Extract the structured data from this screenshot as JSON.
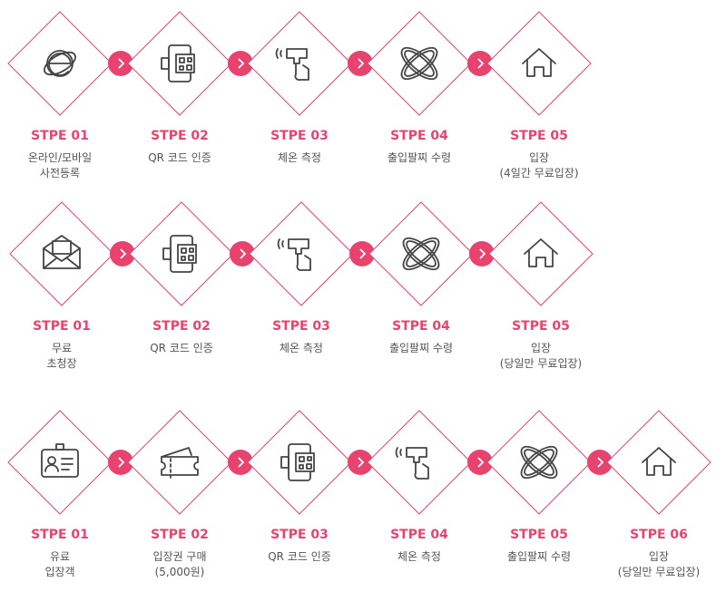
{
  "accent_color": "#e8436e",
  "rows": [
    {
      "steps": [
        {
          "num": "STPE 01",
          "lines": [
            "온라인/모바일",
            "사전등록"
          ],
          "icon": "internet-explorer-icon"
        },
        {
          "num": "STPE 02",
          "lines": [
            "QR 코드 인증"
          ],
          "icon": "qr-phone-icon"
        },
        {
          "num": "STPE 03",
          "lines": [
            "체온 측정"
          ],
          "icon": "thermometer-gun-icon"
        },
        {
          "num": "STPE 04",
          "lines": [
            "출입팔찌 수령"
          ],
          "icon": "wristband-icon"
        },
        {
          "num": "STPE 05",
          "lines": [
            "입장",
            "(4일간 무료입장)"
          ],
          "icon": "home-icon"
        }
      ]
    },
    {
      "steps": [
        {
          "num": "STPE 01",
          "lines": [
            "무료",
            "초청장"
          ],
          "icon": "envelope-icon"
        },
        {
          "num": "STPE 02",
          "lines": [
            "QR 코드 인증"
          ],
          "icon": "qr-phone-icon"
        },
        {
          "num": "STPE 03",
          "lines": [
            "체온 측정"
          ],
          "icon": "thermometer-gun-icon"
        },
        {
          "num": "STPE 04",
          "lines": [
            "출입팔찌 수령"
          ],
          "icon": "wristband-icon"
        },
        {
          "num": "STPE 05",
          "lines": [
            "입장",
            "(당일만 무료입장)"
          ],
          "icon": "home-icon"
        }
      ]
    },
    {
      "steps": [
        {
          "num": "STPE 01",
          "lines": [
            "유료",
            "입장객"
          ],
          "icon": "id-card-icon"
        },
        {
          "num": "STPE 02",
          "lines": [
            "입장권 구매",
            "(5,000원)"
          ],
          "icon": "ticket-icon"
        },
        {
          "num": "STPE 03",
          "lines": [
            "QR 코드 인증"
          ],
          "icon": "qr-phone-icon"
        },
        {
          "num": "STPE 04",
          "lines": [
            "체온 측정"
          ],
          "icon": "thermometer-gun-icon"
        },
        {
          "num": "STPE 05",
          "lines": [
            "출입팔찌 수령"
          ],
          "icon": "wristband-icon"
        },
        {
          "num": "STPE 06",
          "lines": [
            "입장",
            "(당일만 무료입장)"
          ],
          "icon": "home-icon"
        }
      ]
    }
  ]
}
